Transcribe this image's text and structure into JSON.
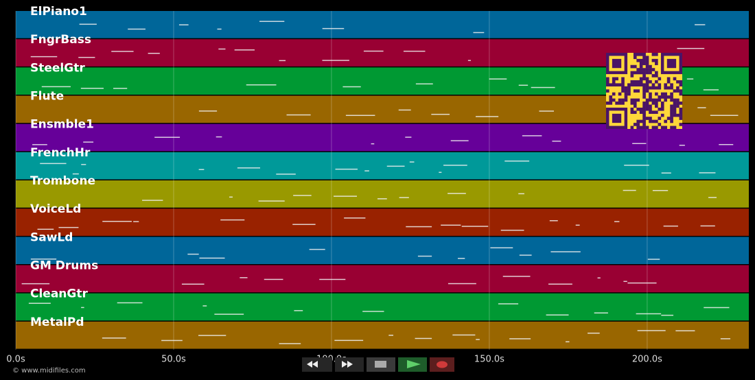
{
  "tracks": [
    {
      "name": "ElPiano1",
      "color": "#006699"
    },
    {
      "name": "FngrBass",
      "color": "#990033"
    },
    {
      "name": "SteelGtr",
      "color": "#009933"
    },
    {
      "name": "Flute",
      "color": "#996600"
    },
    {
      "name": "Ensmble1",
      "color": "#660099"
    },
    {
      "name": "FrenchHr",
      "color": "#009999"
    },
    {
      "name": "Trombone",
      "color": "#999900"
    },
    {
      "name": "VoiceLd",
      "color": "#992200"
    },
    {
      "name": "SawLd",
      "color": "#006699"
    },
    {
      "name": "GM Drums",
      "color": "#990033"
    },
    {
      "name": "CleanGtr",
      "color": "#009933"
    },
    {
      "name": "MetalPd",
      "color": "#996600"
    }
  ],
  "timeline": {
    "xlim": [
      0,
      232.2
    ],
    "xticks": [
      {
        "value": 0,
        "label": "0.0s"
      },
      {
        "value": 50,
        "label": "50.0s"
      },
      {
        "value": 100,
        "label": "100.0s"
      },
      {
        "value": 150,
        "label": "150.0s"
      },
      {
        "value": 200,
        "label": "200.0s"
      }
    ]
  },
  "footer": "© www.midifiles.com"
}
